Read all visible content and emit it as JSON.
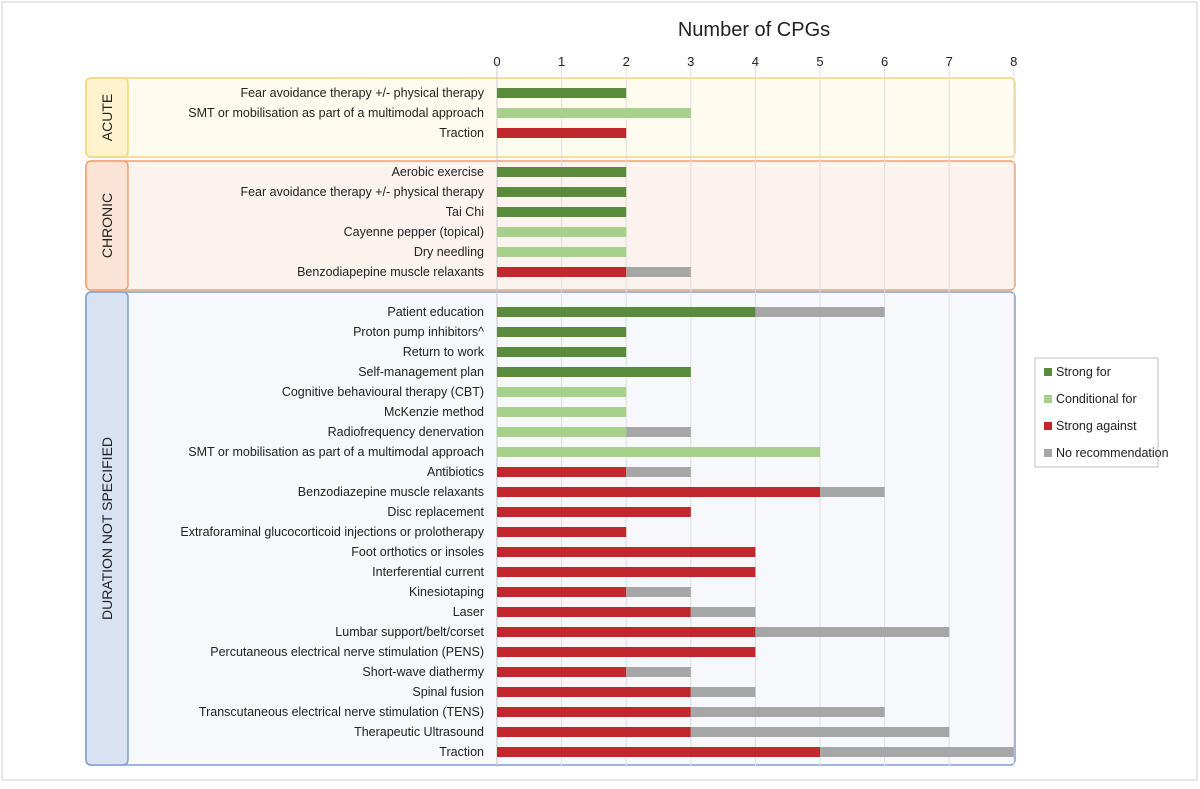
{
  "chart_data": {
    "type": "bar",
    "orientation": "horizontal",
    "stacked": true,
    "title": "Number of CPGs",
    "xlim": [
      0,
      8
    ],
    "x_ticks": [
      "0",
      "1",
      "2",
      "3",
      "4",
      "5",
      "6",
      "7",
      "8"
    ],
    "grid": "vertical",
    "legend_position": "right",
    "legend": [
      {
        "name": "Strong for",
        "color": "#5a8a3c"
      },
      {
        "name": "Conditional for",
        "color": "#a8d08d"
      },
      {
        "name": "Strong against",
        "color": "#c0282d"
      },
      {
        "name": "No recommendation",
        "color": "#a6a6a6"
      }
    ],
    "groups": [
      {
        "label": "ACUTE",
        "fill": "#fffbee",
        "border": "#f5d37a",
        "tab_fill": "#fff3cf",
        "rows": [
          {
            "label": "Fear avoidance therapy +/- physical therapy",
            "values": [
              2,
              0,
              0,
              0
            ]
          },
          {
            "label": "SMT or mobilisation as part of a multimodal approach",
            "values": [
              0,
              3,
              0,
              0
            ]
          },
          {
            "label": "Traction",
            "values": [
              0,
              0,
              2,
              0
            ]
          }
        ]
      },
      {
        "label": "CHRONIC",
        "fill": "#fdf3ee",
        "border": "#f0a070",
        "tab_fill": "#fbe3d6",
        "rows": [
          {
            "label": "Aerobic exercise",
            "values": [
              2,
              0,
              0,
              0
            ]
          },
          {
            "label": "Fear avoidance therapy +/- physical therapy",
            "values": [
              2,
              0,
              0,
              0
            ]
          },
          {
            "label": "Tai Chi",
            "values": [
              2,
              0,
              0,
              0
            ]
          },
          {
            "label": "Cayenne pepper (topical)",
            "values": [
              0,
              2,
              0,
              0
            ]
          },
          {
            "label": "Dry needling",
            "values": [
              0,
              2,
              0,
              0
            ]
          },
          {
            "label": "Benzodiapepine muscle relaxants",
            "values": [
              0,
              0,
              2,
              1
            ]
          }
        ]
      },
      {
        "label": "DURATION NOT SPECIFIED",
        "fill": "#f6f8fc",
        "border": "#7f9fd0",
        "tab_fill": "#d9e2f3",
        "rows": [
          {
            "label": "Patient education",
            "values": [
              4,
              0,
              0,
              2
            ]
          },
          {
            "label": "Proton pump inhibitors^",
            "values": [
              2,
              0,
              0,
              0
            ]
          },
          {
            "label": "Return to work",
            "values": [
              2,
              0,
              0,
              0
            ]
          },
          {
            "label": "Self-management plan",
            "values": [
              3,
              0,
              0,
              0
            ]
          },
          {
            "label": "Cognitive behavioural therapy (CBT)",
            "values": [
              0,
              2,
              0,
              0
            ]
          },
          {
            "label": "McKenzie method",
            "values": [
              0,
              2,
              0,
              0
            ]
          },
          {
            "label": "Radiofrequency denervation",
            "values": [
              0,
              2,
              0,
              1
            ]
          },
          {
            "label": "SMT or mobilisation as part of a multimodal approach",
            "values": [
              0,
              5,
              0,
              0
            ]
          },
          {
            "label": "Antibiotics",
            "values": [
              0,
              0,
              2,
              1
            ]
          },
          {
            "label": "Benzodiazepine muscle relaxants",
            "values": [
              0,
              0,
              5,
              1
            ]
          },
          {
            "label": "Disc replacement",
            "values": [
              0,
              0,
              3,
              0
            ]
          },
          {
            "label": "Extraforaminal glucocorticoid injections or prolotherapy",
            "values": [
              0,
              0,
              2,
              0
            ]
          },
          {
            "label": "Foot orthotics or insoles",
            "values": [
              0,
              0,
              4,
              0
            ]
          },
          {
            "label": "Interferential current",
            "values": [
              0,
              0,
              4,
              0
            ]
          },
          {
            "label": "Kinesiotaping",
            "values": [
              0,
              0,
              2,
              1
            ]
          },
          {
            "label": "Laser",
            "values": [
              0,
              0,
              3,
              1
            ]
          },
          {
            "label": "Lumbar support/belt/corset",
            "values": [
              0,
              0,
              4,
              3
            ]
          },
          {
            "label": "Percutaneous electrical nerve stimulation (PENS)",
            "values": [
              0,
              0,
              4,
              0
            ]
          },
          {
            "label": "Short-wave diathermy",
            "values": [
              0,
              0,
              2,
              1
            ]
          },
          {
            "label": "Spinal fusion",
            "values": [
              0,
              0,
              3,
              1
            ]
          },
          {
            "label": "Transcutaneous electrical nerve stimulation (TENS)",
            "values": [
              0,
              0,
              3,
              3
            ]
          },
          {
            "label": "Therapeutic Ultrasound",
            "values": [
              0,
              0,
              3,
              4
            ]
          },
          {
            "label": "Traction",
            "values": [
              0,
              0,
              5,
              3
            ]
          }
        ]
      }
    ]
  }
}
